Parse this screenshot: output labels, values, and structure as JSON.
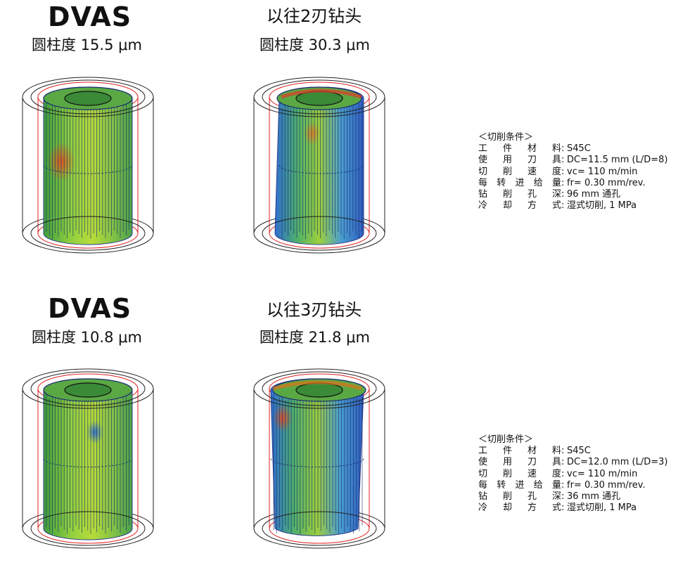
{
  "panels": [
    {
      "title": "DVAS",
      "subtitle": "圆柱度 15.5 μm",
      "style": "dvas"
    },
    {
      "title": "以往2刃钻头",
      "subtitle": "圆柱度 30.3 μm",
      "style": "conventional"
    },
    {
      "title": "DVAS",
      "subtitle": "圆柱度 10.8 μm",
      "style": "dvas"
    },
    {
      "title": "以往3刃钻头",
      "subtitle": "圆柱度 21.8 μm",
      "style": "conventional"
    }
  ],
  "conditions": [
    {
      "header": "＜切削条件＞",
      "rows": [
        {
          "key": [
            "工",
            "件",
            "材",
            "料"
          ],
          "value": "S45C"
        },
        {
          "key": [
            "使",
            "用",
            "刀",
            "具"
          ],
          "value": "DC=11.5 mm (L/D=8)"
        },
        {
          "key": [
            "切",
            "削",
            "速",
            "度"
          ],
          "value": "vc= 110 m/min"
        },
        {
          "key": [
            "每",
            "转",
            "进",
            "给",
            "量"
          ],
          "value": "fr= 0.30 mm/rev."
        },
        {
          "key": [
            "钻",
            "削",
            "孔",
            "深"
          ],
          "value": "96 mm 通孔"
        },
        {
          "key": [
            "冷",
            "却",
            "方",
            "式"
          ],
          "value": "湿式切削, 1 MPa"
        }
      ]
    },
    {
      "header": "＜切削条件＞",
      "rows": [
        {
          "key": [
            "工",
            "件",
            "材",
            "料"
          ],
          "value": "S45C"
        },
        {
          "key": [
            "使",
            "用",
            "刀",
            "具"
          ],
          "value": "DC=12.0 mm (L/D=3)"
        },
        {
          "key": [
            "切",
            "削",
            "速",
            "度"
          ],
          "value": "vc= 110 m/min"
        },
        {
          "key": [
            "每",
            "转",
            "进",
            "给",
            "量"
          ],
          "value": "fr= 0.30 mm/rev."
        },
        {
          "key": [
            "钻",
            "削",
            "孔",
            "深"
          ],
          "value": "36 mm 通孔"
        },
        {
          "key": [
            "冷",
            "却",
            "方",
            "式"
          ],
          "value": "湿式切削, 1 MPa"
        }
      ]
    }
  ]
}
